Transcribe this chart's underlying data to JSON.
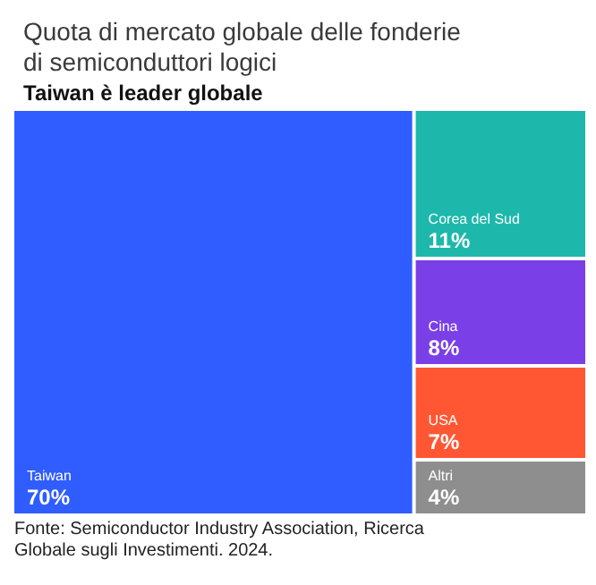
{
  "chart_data": {
    "type": "other",
    "title": "Quota di mercato globale delle fonderie di semiconduttori logici",
    "subtitle": "Taiwan è leader globale",
    "categories": [
      "Taiwan",
      "Corea del Sud",
      "Cina",
      "USA",
      "Altri"
    ],
    "values": [
      70,
      11,
      8,
      7,
      4
    ],
    "colors": [
      "#2f5dff",
      "#1db8ab",
      "#7a3fe6",
      "#ff5733",
      "#8e8e8e"
    ],
    "value_labels": [
      "70%",
      "11%",
      "8%",
      "7%",
      "4%"
    ],
    "annotations": [
      "Fonte: Semiconductor Industry Association, Ricerca Globale sugli Investimenti. 2024."
    ]
  }
}
